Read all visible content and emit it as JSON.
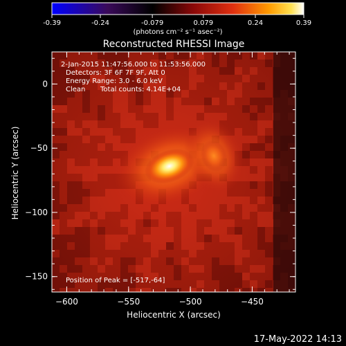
{
  "colorbar": {
    "tick_labels": [
      "-0.39",
      "-0.24",
      "-0.079",
      "0.079",
      "0.24",
      "0.39"
    ],
    "tick_values": [
      -0.39,
      -0.24,
      -0.079,
      0.079,
      0.24,
      0.39
    ],
    "range": [
      -0.39,
      0.39
    ],
    "units_label": "(photons cm⁻² s⁻¹ asec⁻²)",
    "colors": [
      "#0000ff",
      "#3a0a5a",
      "#000000",
      "#b01010",
      "#ff7a00",
      "#ffffff"
    ]
  },
  "chart_data": {
    "type": "heatmap",
    "title": "Reconstructed RHESSI Image",
    "xlabel": "Heliocentric X (arcsec)",
    "ylabel": "Heliocentric Y (arcsec)",
    "xlim": [
      -612,
      -415
    ],
    "ylim": [
      -162,
      25
    ],
    "xticks": [
      -600,
      -550,
      -500,
      -450
    ],
    "yticks": [
      0,
      -50,
      -100,
      -150
    ],
    "xtick_labels": [
      "−600",
      "−550",
      "−500",
      "−450"
    ],
    "ytick_labels": [
      "0",
      "−50",
      "−100",
      "−150"
    ],
    "sources": [
      {
        "x": -517,
        "y": -64,
        "peak": 0.39,
        "sx": 8,
        "sy": 5
      },
      {
        "x": -481,
        "y": -56,
        "peak": 0.22,
        "sx": 4,
        "sy": 5
      }
    ],
    "annotations": {
      "time_range": "2-Jan-2015 11:47:56.000 to 11:53:56.000",
      "detectors": "Detectors: 3F 6F 7F 9F, Att 0",
      "energy": "Energy Range: 3.0 - 6.0 keV",
      "clean_label": "Clean",
      "total_counts": "Total counts: 4.14E+04",
      "peak_position": "Position of Peak = [-517,-64]"
    }
  },
  "timestamp": "17-May-2022 14:13"
}
